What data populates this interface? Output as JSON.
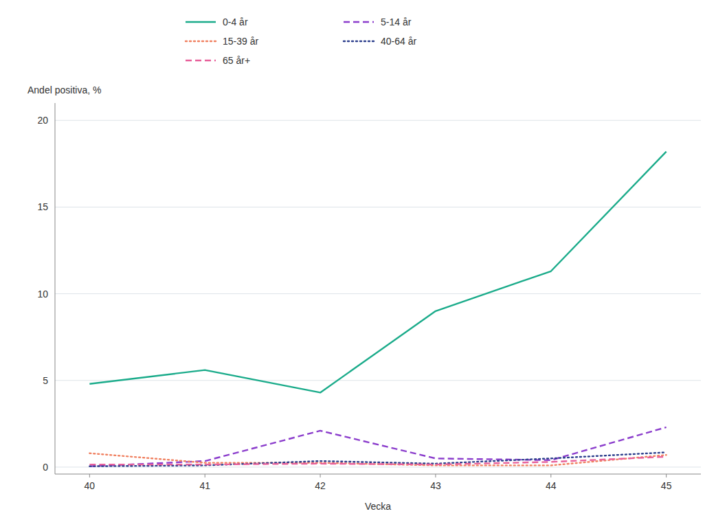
{
  "chart_data": {
    "type": "line",
    "x_label": "Vecka",
    "y_label": "Andel positiva, %",
    "x": [
      40,
      41,
      42,
      43,
      44,
      45
    ],
    "series": [
      {
        "name": "0-4 år",
        "color": "#1aab8a",
        "line_style": "solid",
        "values": [
          4.8,
          5.6,
          4.3,
          9.0,
          11.3,
          18.2
        ]
      },
      {
        "name": "5-14 år",
        "color": "#8b3dcc",
        "line_style": "dashed",
        "values": [
          0.05,
          0.35,
          2.1,
          0.5,
          0.4,
          2.3
        ]
      },
      {
        "name": "15-39 år",
        "color": "#f08060",
        "line_style": "dotted",
        "values": [
          0.8,
          0.25,
          0.25,
          0.1,
          0.1,
          0.7
        ]
      },
      {
        "name": "40-64 år",
        "color": "#2c3e8c",
        "line_style": "dotted",
        "values": [
          0.05,
          0.1,
          0.35,
          0.2,
          0.5,
          0.85
        ]
      },
      {
        "name": "65 år+",
        "color": "#e8609a",
        "line_style": "dashed",
        "values": [
          0.15,
          0.15,
          0.2,
          0.15,
          0.3,
          0.6
        ]
      }
    ],
    "xlim": [
      39.7,
      45.3
    ],
    "xticks": [
      40,
      41,
      42,
      43,
      44,
      45
    ],
    "ylim": [
      -0.4,
      21
    ],
    "yticks": [
      0,
      5,
      10,
      15,
      20
    ],
    "grid": true,
    "legend": "top"
  }
}
